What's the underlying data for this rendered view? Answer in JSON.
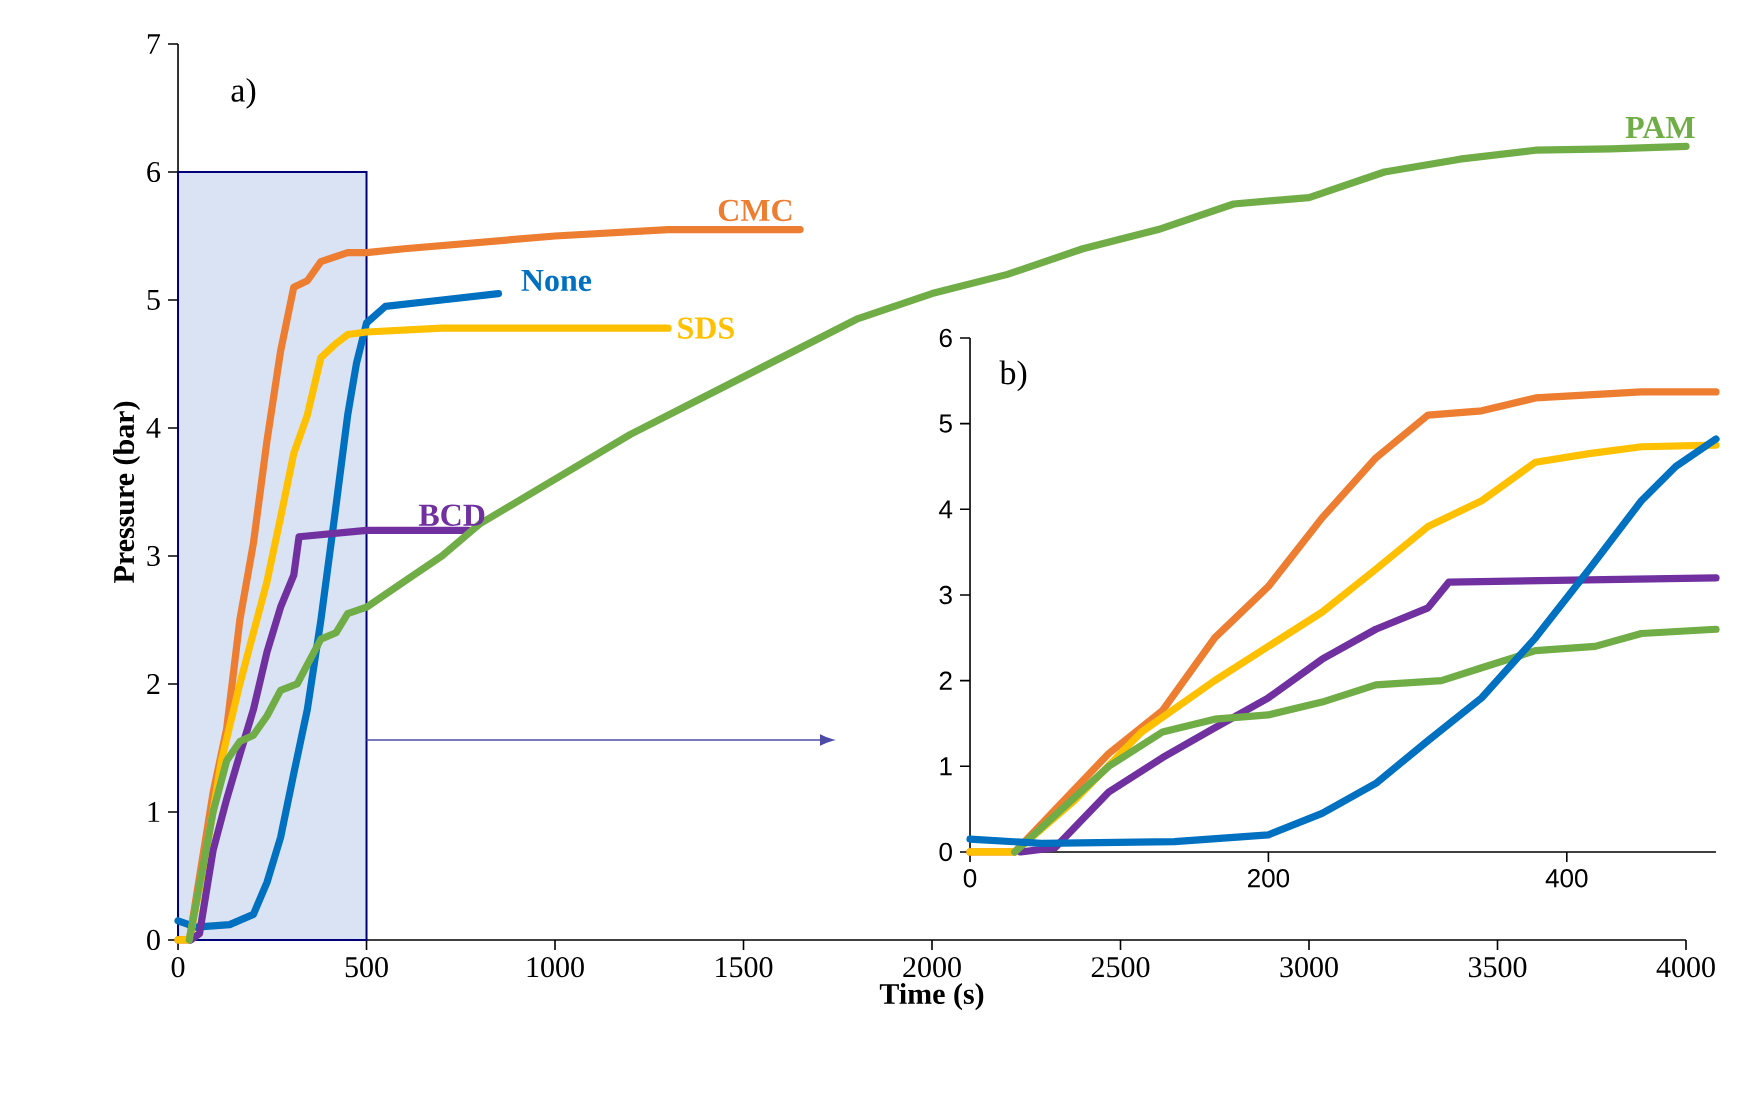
{
  "chart_data": [
    {
      "type": "line",
      "xlabel": "Time (s)",
      "ylabel": "Pressure (bar)",
      "annotations": [
        "a)"
      ],
      "xlim": [
        0,
        4000
      ],
      "ylim": [
        0,
        7
      ],
      "xticks": [
        0,
        500,
        1000,
        1500,
        2000,
        2500,
        3000,
        3500,
        4000
      ],
      "yticks": [
        0,
        1,
        2,
        3,
        4,
        5,
        6,
        7
      ],
      "bands": [
        {
          "axis": "x",
          "from": 0,
          "to": 500,
          "color": "#dae3f3"
        }
      ],
      "series": [
        {
          "name": "CMC",
          "color": "#ed7d31",
          "x": [
            0,
            30,
            93,
            129,
            164,
            200,
            236,
            272,
            307,
            343,
            379,
            450,
            500,
            600,
            800,
            1000,
            1300,
            1650
          ],
          "values": [
            0,
            0,
            1.15,
            1.65,
            2.5,
            3.1,
            3.9,
            4.6,
            5.1,
            5.15,
            5.3,
            5.37,
            5.37,
            5.4,
            5.45,
            5.5,
            5.55,
            5.55
          ]
        },
        {
          "name": "None",
          "color": "#0070c0",
          "x": [
            0,
            48,
            137,
            200,
            236,
            272,
            307,
            343,
            379,
            415,
            450,
            473,
            500,
            550,
            700,
            850
          ],
          "values": [
            0.15,
            0.1,
            0.12,
            0.2,
            0.45,
            0.8,
            1.3,
            1.8,
            2.5,
            3.3,
            4.1,
            4.5,
            4.82,
            4.95,
            5.0,
            5.05
          ]
        },
        {
          "name": "SDS",
          "color": "#ffc000",
          "x": [
            0,
            30,
            70,
            115,
            164,
            200,
            236,
            272,
            307,
            343,
            379,
            415,
            450,
            500,
            700,
            1000,
            1300
          ],
          "values": [
            0,
            0,
            0.6,
            1.4,
            2.0,
            2.4,
            2.8,
            3.3,
            3.8,
            4.1,
            4.55,
            4.65,
            4.73,
            4.75,
            4.78,
            4.78,
            4.78
          ]
        },
        {
          "name": "BCD",
          "color": "#7030a0",
          "x": [
            34,
            57,
            93,
            129,
            164,
            200,
            236,
            272,
            307,
            321,
            500,
            770
          ],
          "values": [
            0,
            0.05,
            0.7,
            1.1,
            1.45,
            1.8,
            2.25,
            2.6,
            2.85,
            3.15,
            3.2,
            3.2
          ]
        },
        {
          "name": "PAM",
          "color": "#70ad47",
          "x": [
            30,
            93,
            129,
            164,
            200,
            236,
            272,
            316,
            343,
            379,
            419,
            450,
            500,
            600,
            700,
            800,
            1000,
            1200,
            1400,
            1600,
            1800,
            2000,
            2200,
            2400,
            2600,
            2800,
            3000,
            3200,
            3400,
            3600,
            3800,
            4000
          ],
          "values": [
            0,
            1.0,
            1.4,
            1.55,
            1.6,
            1.75,
            1.95,
            2.0,
            2.15,
            2.35,
            2.4,
            2.55,
            2.6,
            2.8,
            3.0,
            3.25,
            3.6,
            3.95,
            4.25,
            4.55,
            4.85,
            5.05,
            5.2,
            5.4,
            5.55,
            5.75,
            5.8,
            6.0,
            6.1,
            6.17,
            6.18,
            6.2
          ]
        }
      ]
    },
    {
      "type": "line",
      "annotations": [
        "b)"
      ],
      "xlim": [
        0,
        500
      ],
      "ylim": [
        0,
        6
      ],
      "xticks": [
        0,
        200,
        400
      ],
      "yticks": [
        0,
        1,
        2,
        3,
        4,
        5,
        6
      ],
      "series": [
        {
          "color": "#ed7d31",
          "x": [
            0,
            30,
            93,
            129,
            164,
            200,
            236,
            272,
            307,
            343,
            379,
            450,
            500
          ],
          "values": [
            0,
            0,
            1.15,
            1.65,
            2.5,
            3.1,
            3.9,
            4.6,
            5.1,
            5.15,
            5.3,
            5.37,
            5.37
          ]
        },
        {
          "color": "#ffc000",
          "x": [
            0,
            30,
            70,
            115,
            164,
            200,
            236,
            272,
            307,
            343,
            379,
            415,
            450,
            500
          ],
          "values": [
            0,
            0,
            0.6,
            1.4,
            2.0,
            2.4,
            2.8,
            3.3,
            3.8,
            4.1,
            4.55,
            4.65,
            4.73,
            4.75
          ]
        },
        {
          "color": "#7030a0",
          "x": [
            34,
            57,
            93,
            129,
            164,
            200,
            236,
            272,
            307,
            321,
            500
          ],
          "values": [
            0,
            0.05,
            0.7,
            1.1,
            1.45,
            1.8,
            2.25,
            2.6,
            2.85,
            3.15,
            3.2
          ]
        },
        {
          "color": "#70ad47",
          "x": [
            30,
            93,
            129,
            164,
            200,
            236,
            272,
            316,
            343,
            379,
            419,
            450,
            500
          ],
          "values": [
            0,
            1.0,
            1.4,
            1.55,
            1.6,
            1.75,
            1.95,
            2.0,
            2.15,
            2.35,
            2.4,
            2.55,
            2.6
          ]
        },
        {
          "color": "#0070c0",
          "x": [
            0,
            48,
            137,
            200,
            236,
            272,
            307,
            343,
            379,
            415,
            450,
            473,
            500
          ],
          "values": [
            0.15,
            0.1,
            0.12,
            0.2,
            0.45,
            0.8,
            1.3,
            1.8,
            2.5,
            3.3,
            4.1,
            4.5,
            4.82
          ]
        }
      ]
    }
  ]
}
